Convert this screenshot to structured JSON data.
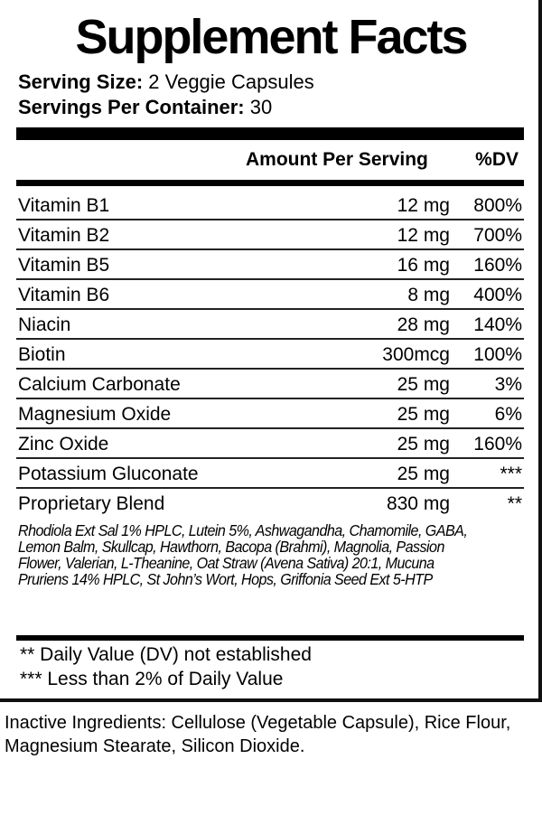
{
  "title": "Supplement Facts",
  "serving_size_label": "Serving Size:",
  "serving_size_value": "2 Veggie Capsules",
  "servings_per_container_label": "Servings Per Container:",
  "servings_per_container_value": "30",
  "col_amount": "Amount Per Serving",
  "col_dv": "%DV",
  "rows": [
    {
      "name": "Vitamin B1",
      "amount": "12 mg",
      "dv": "800%"
    },
    {
      "name": "Vitamin B2",
      "amount": "12 mg",
      "dv": "700%"
    },
    {
      "name": "Vitamin B5",
      "amount": "16 mg",
      "dv": "160%"
    },
    {
      "name": "Vitamin B6",
      "amount": "8 mg",
      "dv": "400%"
    },
    {
      "name": "Niacin",
      "amount": "28 mg",
      "dv": "140%"
    },
    {
      "name": "Biotin",
      "amount": "300mcg",
      "dv": "100%"
    },
    {
      "name": "Calcium Carbonate",
      "amount": "25 mg",
      "dv": "3%"
    },
    {
      "name": "Magnesium Oxide",
      "amount": "25 mg",
      "dv": "6%"
    },
    {
      "name": "Zinc Oxide",
      "amount": "25 mg",
      "dv": "160%"
    },
    {
      "name": "Potassium Gluconate",
      "amount": "25 mg",
      "dv": "***"
    },
    {
      "name": "Proprietary Blend",
      "amount": "830 mg",
      "dv": "**"
    }
  ],
  "blend_ingredients": "Rhodiola Ext Sal 1% HPLC, Lutein 5%,  Ashwagandha, Chamomile, GABA, Lemon Balm, Skullcap, Hawthorn, Bacopa (Brahmi), Magnolia, Passion Flower, Valerian, L-Theanine, Oat Straw (Avena Sativa) 20:1, Mucuna Pruriens 14% HPLC, St John’s Wort, Hops, Griffonia Seed Ext 5-HTP",
  "footnote_1": "** Daily Value (DV) not established",
  "footnote_2": "*** Less than 2% of Daily Value",
  "inactive_ingredients": "Inactive Ingredients: Cellulose (Vegetable Capsule), Rice Flour, Magnesium Stearate, Silicon Dioxide."
}
